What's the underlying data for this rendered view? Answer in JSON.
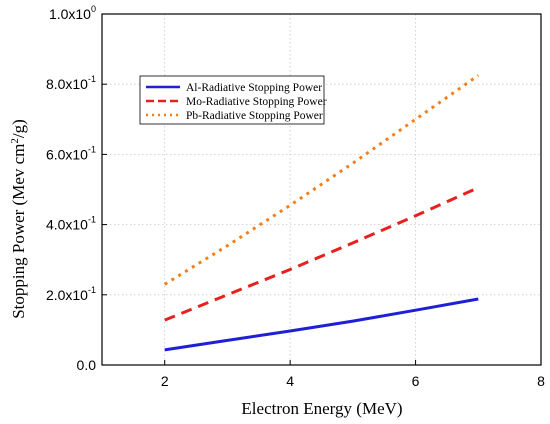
{
  "chart_data": {
    "type": "line",
    "xlabel": "Electron Energy (MeV)",
    "ylabel_main": "Stopping Power (Mev cm",
    "ylabel_sup": "2",
    "ylabel_tail": "/g)",
    "xlim": [
      1,
      8
    ],
    "ylim": [
      0,
      1.0
    ],
    "x_ticks": [
      {
        "value": 2,
        "label": "2"
      },
      {
        "value": 4,
        "label": "4"
      },
      {
        "value": 6,
        "label": "6"
      },
      {
        "value": 8,
        "label": "8"
      }
    ],
    "y_ticks": [
      {
        "value": 0.0,
        "base": "0.0",
        "exp": ""
      },
      {
        "value": 0.2,
        "base": "2.0x10",
        "exp": "-1"
      },
      {
        "value": 0.4,
        "base": "4.0x10",
        "exp": "-1"
      },
      {
        "value": 0.6,
        "base": "6.0x10",
        "exp": "-1"
      },
      {
        "value": 0.8,
        "base": "8.0x10",
        "exp": "-1"
      },
      {
        "value": 1.0,
        "base": "1.0x10",
        "exp": "0"
      }
    ],
    "grid": true,
    "legend_position": "upper-left",
    "series": [
      {
        "name": "Al-Radiative Stopping Power",
        "color": "#1f1fd6",
        "style": "solid",
        "x": [
          2,
          3,
          4,
          5,
          6,
          7
        ],
        "y": [
          0.043,
          0.07,
          0.097,
          0.125,
          0.156,
          0.188
        ]
      },
      {
        "name": "Mo-Radiative Stopping Power",
        "color": "#e8201e",
        "style": "dashed",
        "x": [
          2,
          3,
          4,
          5,
          6,
          7
        ],
        "y": [
          0.128,
          0.2,
          0.272,
          0.348,
          0.425,
          0.505
        ]
      },
      {
        "name": "Pb-Radiative Stopping Power",
        "color": "#f47f1a",
        "style": "dotted",
        "x": [
          2,
          3,
          4,
          5,
          6,
          7
        ],
        "y": [
          0.23,
          0.34,
          0.455,
          0.575,
          0.7,
          0.825
        ]
      }
    ]
  }
}
